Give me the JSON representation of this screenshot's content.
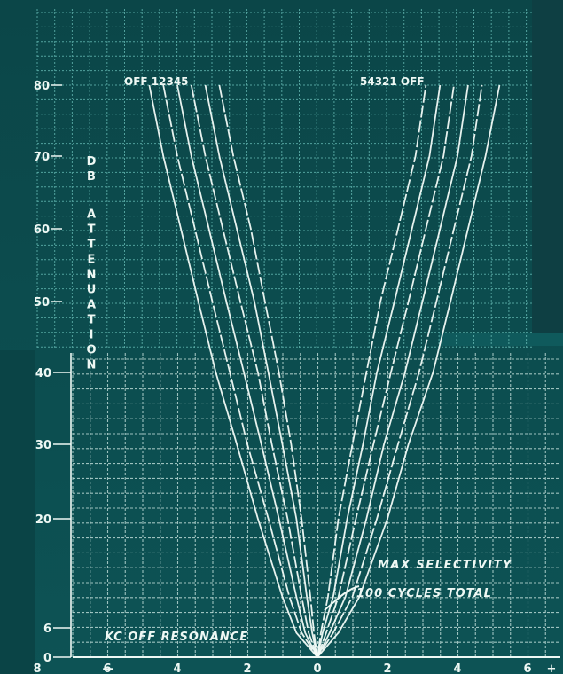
{
  "chart_data": {
    "type": "line",
    "title": "",
    "xlabel": "KC OFF RESONANCE",
    "ylabel": "DB ATTENUATION",
    "xlim": [
      -10,
      10
    ],
    "ylim": [
      0,
      80
    ],
    "grid": true,
    "x_tick_labels": [
      {
        "x": -10,
        "label": "—"
      },
      {
        "x": -8,
        "label": "8"
      },
      {
        "x": -6,
        "label": "6"
      },
      {
        "x": -4,
        "label": "4"
      },
      {
        "x": -2,
        "label": "2"
      },
      {
        "x": 0,
        "label": "0"
      },
      {
        "x": 2,
        "label": "2"
      },
      {
        "x": 4,
        "label": "4"
      },
      {
        "x": 6,
        "label": "6"
      },
      {
        "x": 8,
        "label": "8"
      },
      {
        "x": 10,
        "label": "+"
      }
    ],
    "y_tick_labels": [
      {
        "y": 0,
        "label": "0"
      },
      {
        "y": 6,
        "label": "6"
      },
      {
        "y": 20,
        "label": "20"
      },
      {
        "y": 30,
        "label": "30"
      },
      {
        "y": 40,
        "label": "40"
      },
      {
        "y": 50,
        "label": "50"
      },
      {
        "y": 60,
        "label": "60"
      },
      {
        "y": 70,
        "label": "70"
      },
      {
        "y": 80,
        "label": "80"
      }
    ],
    "curve_labels_left": "OFF 12345",
    "curve_labels_right": "54321 OFF",
    "annotations": [
      "MAX SELECTIVITY",
      "100 CYCLES TOTAL"
    ],
    "series": [
      {
        "name": "OFF",
        "points": [
          [
            -4.8,
            80
          ],
          [
            -4.4,
            70
          ],
          [
            -3.9,
            60
          ],
          [
            -3.4,
            50
          ],
          [
            -2.9,
            40
          ],
          [
            -2.3,
            30
          ],
          [
            -1.7,
            20
          ],
          [
            -1.0,
            10
          ],
          [
            -0.6,
            5
          ],
          [
            0,
            0
          ],
          [
            0.6,
            5
          ],
          [
            1.2,
            10
          ],
          [
            2.0,
            20
          ],
          [
            2.6,
            30
          ],
          [
            3.3,
            40
          ],
          [
            3.8,
            50
          ],
          [
            4.3,
            60
          ],
          [
            4.8,
            70
          ],
          [
            5.2,
            80
          ]
        ]
      },
      {
        "name": "1",
        "points": [
          [
            -4.4,
            80
          ],
          [
            -4.0,
            70
          ],
          [
            -3.5,
            60
          ],
          [
            -3.0,
            50
          ],
          [
            -2.5,
            40
          ],
          [
            -2.0,
            30
          ],
          [
            -1.4,
            20
          ],
          [
            -0.8,
            10
          ],
          [
            -0.45,
            5
          ],
          [
            0,
            0
          ],
          [
            0.45,
            5
          ],
          [
            1.0,
            10
          ],
          [
            1.7,
            20
          ],
          [
            2.3,
            30
          ],
          [
            2.9,
            40
          ],
          [
            3.4,
            50
          ],
          [
            3.9,
            60
          ],
          [
            4.4,
            70
          ],
          [
            4.7,
            80
          ]
        ]
      },
      {
        "name": "2",
        "points": [
          [
            -4.0,
            80
          ],
          [
            -3.6,
            70
          ],
          [
            -3.1,
            60
          ],
          [
            -2.6,
            50
          ],
          [
            -2.1,
            40
          ],
          [
            -1.6,
            30
          ],
          [
            -1.1,
            20
          ],
          [
            -0.6,
            10
          ],
          [
            -0.35,
            5
          ],
          [
            0,
            0
          ],
          [
            0.35,
            5
          ],
          [
            0.8,
            10
          ],
          [
            1.4,
            20
          ],
          [
            1.9,
            30
          ],
          [
            2.5,
            40
          ],
          [
            3.0,
            50
          ],
          [
            3.5,
            60
          ],
          [
            4.0,
            70
          ],
          [
            4.3,
            80
          ]
        ]
      },
      {
        "name": "3",
        "points": [
          [
            -3.6,
            80
          ],
          [
            -3.2,
            70
          ],
          [
            -2.7,
            60
          ],
          [
            -2.2,
            50
          ],
          [
            -1.7,
            40
          ],
          [
            -1.3,
            30
          ],
          [
            -0.85,
            20
          ],
          [
            -0.45,
            10
          ],
          [
            -0.25,
            5
          ],
          [
            0,
            0
          ],
          [
            0.25,
            5
          ],
          [
            0.6,
            10
          ],
          [
            1.1,
            20
          ],
          [
            1.6,
            30
          ],
          [
            2.1,
            40
          ],
          [
            2.6,
            50
          ],
          [
            3.1,
            60
          ],
          [
            3.6,
            70
          ],
          [
            3.9,
            80
          ]
        ]
      },
      {
        "name": "4",
        "points": [
          [
            -3.2,
            80
          ],
          [
            -2.8,
            70
          ],
          [
            -2.3,
            60
          ],
          [
            -1.8,
            50
          ],
          [
            -1.4,
            40
          ],
          [
            -1.0,
            30
          ],
          [
            -0.6,
            20
          ],
          [
            -0.3,
            10
          ],
          [
            -0.15,
            5
          ],
          [
            0,
            0
          ],
          [
            0.15,
            5
          ],
          [
            0.45,
            10
          ],
          [
            0.85,
            20
          ],
          [
            1.3,
            30
          ],
          [
            1.7,
            40
          ],
          [
            2.2,
            50
          ],
          [
            2.7,
            60
          ],
          [
            3.2,
            70
          ],
          [
            3.5,
            80
          ]
        ]
      },
      {
        "name": "5",
        "points": [
          [
            -2.8,
            80
          ],
          [
            -2.4,
            70
          ],
          [
            -1.9,
            60
          ],
          [
            -1.5,
            50
          ],
          [
            -1.1,
            40
          ],
          [
            -0.75,
            30
          ],
          [
            -0.45,
            20
          ],
          [
            -0.2,
            10
          ],
          [
            -0.1,
            5
          ],
          [
            0,
            0
          ],
          [
            0.1,
            5
          ],
          [
            0.3,
            10
          ],
          [
            0.6,
            20
          ],
          [
            1.0,
            30
          ],
          [
            1.4,
            40
          ],
          [
            1.8,
            50
          ],
          [
            2.3,
            60
          ],
          [
            2.8,
            70
          ],
          [
            3.1,
            80
          ]
        ]
      }
    ]
  }
}
